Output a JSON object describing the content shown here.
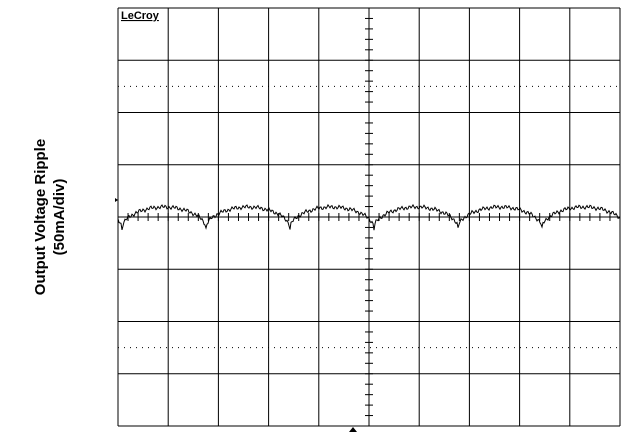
{
  "logo": "LeCroy",
  "y_label": {
    "title": "Output Voltage Ripple",
    "scale": "(50mA/div)"
  }
}
